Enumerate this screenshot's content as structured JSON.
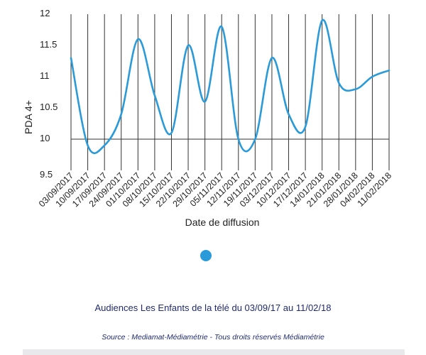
{
  "chart_data": {
    "type": "line",
    "title": "",
    "xlabel": "Date de diffusion",
    "ylabel": "PDA 4+",
    "ylim": [
      9.5,
      12
    ],
    "y_ticks": [
      "9.5",
      "10",
      "10.5",
      "11",
      "11.5",
      "12"
    ],
    "grid": "vertical lines at each category, horizontal line at 10",
    "categories": [
      "03/09/2017",
      "10/09/2017",
      "17/09/2017",
      "24/09/2017",
      "01/10/2017",
      "08/10/2017",
      "15/10/2017",
      "22/10/2017",
      "29/10/2017",
      "05/11/2017",
      "12/11/2017",
      "19/11/2017",
      "03/12/2017",
      "10/12/2017",
      "17/12/2017",
      "14/01/2018",
      "21/01/2018",
      "28/01/2018",
      "04/02/2018",
      "11/02/2018"
    ],
    "series": [
      {
        "color": "#2a9ad8",
        "values": [
          11.3,
          9.9,
          9.9,
          10.4,
          11.6,
          10.7,
          10.1,
          11.5,
          10.6,
          11.8,
          10.0,
          10.0,
          11.3,
          10.4,
          10.2,
          11.9,
          10.9,
          10.8,
          11.0,
          11.1
        ]
      }
    ]
  },
  "indicator": {
    "color": "#2a9ad8"
  },
  "caption": "Audiences Les Enfants de la télé du 03/09/17 au 11/02/18",
  "source": "Source : Mediamat-Médiamétrie - Tous droits réservés Médiamétrie"
}
